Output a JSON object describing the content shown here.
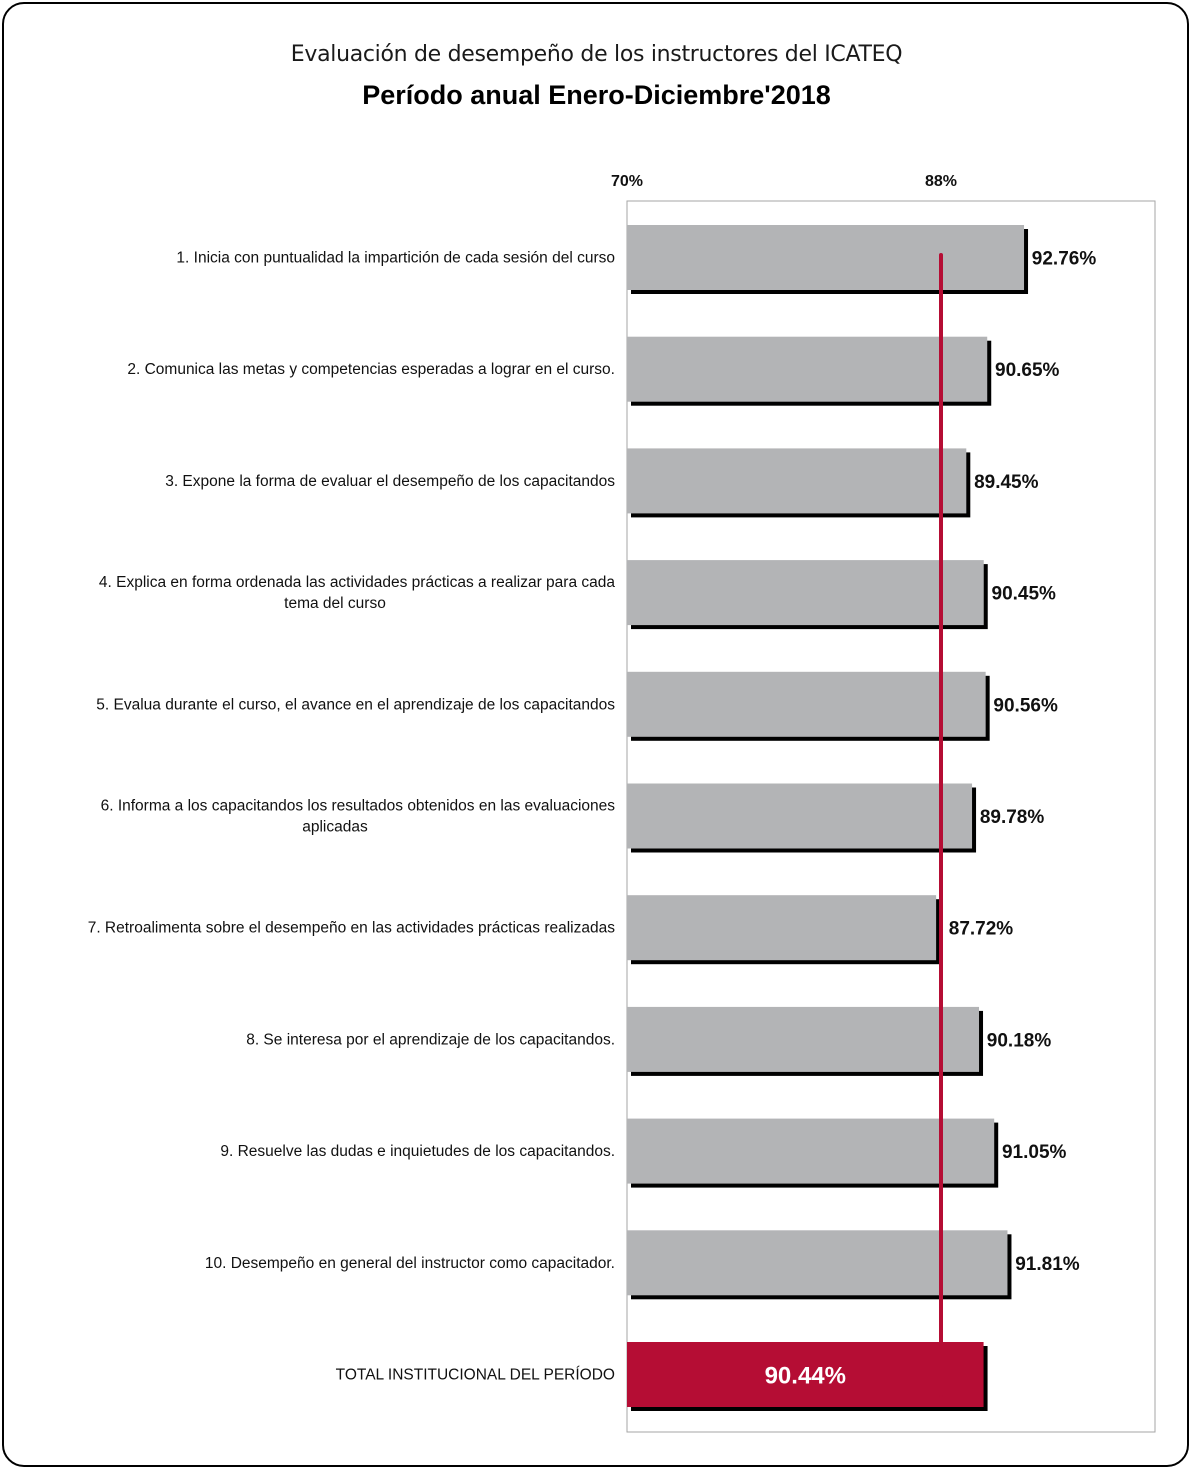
{
  "title": "Evaluación de desempeño de los instructores del ICATEQ",
  "subtitle": "Período anual Enero-Diciembre'2018",
  "chart_data": {
    "type": "bar",
    "orientation": "horizontal",
    "title": "Evaluación de desempeño de los instructores del ICATEQ",
    "subtitle": "Período anual Enero-Diciembre'2018",
    "xlim": [
      70,
      90
    ],
    "x_ticks": [
      {
        "value": 70,
        "label": "70%"
      },
      {
        "value": 88,
        "label": "88%"
      }
    ],
    "reference_line": {
      "value": 88,
      "color": "#b50d34"
    },
    "grid": false,
    "categories": [
      [
        "1. Inicia con puntualidad la impartición de cada sesión del curso"
      ],
      [
        "2. Comunica las metas y competencias esperadas a lograr en el curso."
      ],
      [
        "3. Expone la forma de evaluar el desempeño de los capacitandos"
      ],
      [
        "4. Explica en forma ordenada las actividades prácticas a realizar para cada",
        "tema del curso"
      ],
      [
        "5. Evalua durante el curso, el avance en el aprendizaje de los capacitandos"
      ],
      [
        "6. Informa a los capacitandos los resultados obtenidos en las evaluaciones",
        "aplicadas"
      ],
      [
        "7. Retroalimenta sobre el desempeño en las actividades prácticas realizadas"
      ],
      [
        "8. Se interesa por el aprendizaje de los capacitandos."
      ],
      [
        "9. Resuelve las dudas e inquietudes de los capacitandos."
      ],
      [
        "10. Desempeño en general del instructor como capacitador."
      ],
      [
        "TOTAL INSTITUCIONAL DEL PERÍODO"
      ]
    ],
    "values": [
      92.76,
      90.65,
      89.45,
      90.45,
      90.56,
      89.78,
      87.72,
      90.18,
      91.05,
      91.81,
      90.44
    ],
    "value_labels": [
      "92.76%",
      "90.65%",
      "89.45%",
      "90.45%",
      "90.56%",
      "89.78%",
      "87.72%",
      "90.18%",
      "91.05%",
      "91.81%",
      "90.44%"
    ],
    "colors": {
      "bar": "#b3b4b6",
      "bar_shadow": "#000000",
      "total_bar": "#b50d34",
      "reference_line": "#b50d34"
    }
  }
}
